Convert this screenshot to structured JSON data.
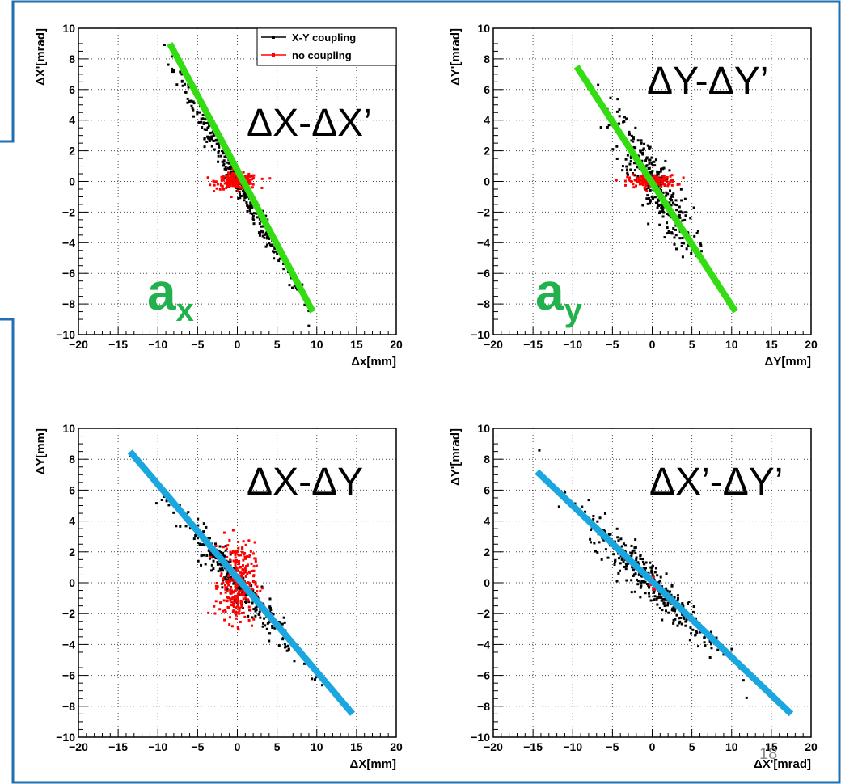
{
  "colors": {
    "frame": "#1f6fb2",
    "coupled": "#000000",
    "uncoupled": "#ff0000",
    "fit_green": "#33dd11",
    "fit_blue": "#1aa7e0",
    "corr_text": "#22b14c"
  },
  "page_number": "18",
  "chart_data": [
    {
      "type": "scatter",
      "title": "",
      "xlabel": "Δx[mm]",
      "ylabel": "ΔX'[mrad]",
      "xlim": [
        -20,
        20
      ],
      "ylim": [
        -10,
        10
      ],
      "xticks": [
        -20,
        -15,
        -10,
        -5,
        0,
        5,
        10,
        15,
        20
      ],
      "yticks": [
        -10,
        -8,
        -6,
        -4,
        -2,
        0,
        2,
        4,
        6,
        8,
        10
      ],
      "grid": true,
      "legend": {
        "placement": "top-right",
        "entries": [
          "X-Y coupling",
          "no coupling"
        ]
      },
      "overlay_label": "ΔX-ΔX’",
      "corr_label": {
        "main": "a",
        "sub": "x"
      },
      "series": [
        {
          "name": "X-Y coupling",
          "color": "#000000",
          "slope": -0.92,
          "spread_x": 4.0,
          "noise_y": 0.45,
          "count": 320
        },
        {
          "name": "no coupling",
          "color": "#ff0000",
          "spread_x": 1.3,
          "spread_y": 0.25,
          "count": 220
        }
      ],
      "fit_line": {
        "x": [
          -8.5,
          9.5
        ],
        "y": [
          9.0,
          -8.5
        ],
        "color": "#33dd11"
      }
    },
    {
      "type": "scatter",
      "title": "",
      "xlabel": "ΔY[mm]",
      "ylabel": "ΔY'[mrad]",
      "xlim": [
        -20,
        20
      ],
      "ylim": [
        -10,
        10
      ],
      "xticks": [
        -20,
        -15,
        -10,
        -5,
        0,
        5,
        10,
        15,
        20
      ],
      "yticks": [
        -10,
        -8,
        -6,
        -4,
        -2,
        0,
        2,
        4,
        6,
        8,
        10
      ],
      "grid": true,
      "overlay_label": "ΔY-ΔY’",
      "corr_label": {
        "main": "a",
        "sub": "y"
      },
      "series": [
        {
          "color": "#000000",
          "slope": -0.75,
          "spread_x": 2.6,
          "noise_y": 1.1,
          "count": 320
        },
        {
          "color": "#ff0000",
          "spread_x": 1.5,
          "spread_y": 0.2,
          "count": 160
        }
      ],
      "fit_line": {
        "x": [
          -9.5,
          10.5
        ],
        "y": [
          7.5,
          -8.5
        ],
        "color": "#33dd11"
      }
    },
    {
      "type": "scatter",
      "title": "",
      "xlabel": "ΔX[mm]",
      "ylabel": "ΔY[mm]",
      "xlim": [
        -20,
        20
      ],
      "ylim": [
        -10,
        10
      ],
      "xticks": [
        -20,
        -15,
        -10,
        -5,
        0,
        5,
        10,
        15,
        20
      ],
      "yticks": [
        -10,
        -8,
        -6,
        -4,
        -2,
        0,
        2,
        4,
        6,
        8,
        10
      ],
      "grid": true,
      "overlay_label": "ΔX-ΔY",
      "series": [
        {
          "color": "#000000",
          "slope": -0.6,
          "spread_x": 3.6,
          "noise_y": 0.55,
          "count": 320
        },
        {
          "color": "#ff0000",
          "spread_x": 1.1,
          "spread_y": 1.3,
          "count": 300
        }
      ],
      "fit_line": {
        "x": [
          -13.5,
          14.5
        ],
        "y": [
          8.5,
          -8.5
        ],
        "color": "#1aa7e0"
      }
    },
    {
      "type": "scatter",
      "title": "",
      "xlabel": "ΔX'[mrad]",
      "ylabel": "ΔY'[mrad]",
      "xlim": [
        -20,
        20
      ],
      "ylim": [
        -10,
        10
      ],
      "xticks": [
        -20,
        -15,
        -10,
        -5,
        0,
        5,
        10,
        15,
        20
      ],
      "yticks": [
        -10,
        -8,
        -6,
        -4,
        -2,
        0,
        2,
        4,
        6,
        8,
        10
      ],
      "grid": true,
      "overlay_label": "ΔX’-ΔY’",
      "series": [
        {
          "color": "#000000",
          "slope": -0.5,
          "spread_x": 4.2,
          "noise_y": 0.7,
          "count": 340
        },
        {
          "color": "#ff0000",
          "spread_x": 0.3,
          "spread_y": 0.2,
          "count": 15
        }
      ],
      "fit_line": {
        "x": [
          -14.5,
          17.5
        ],
        "y": [
          7.2,
          -8.5
        ],
        "color": "#1aa7e0"
      }
    }
  ]
}
